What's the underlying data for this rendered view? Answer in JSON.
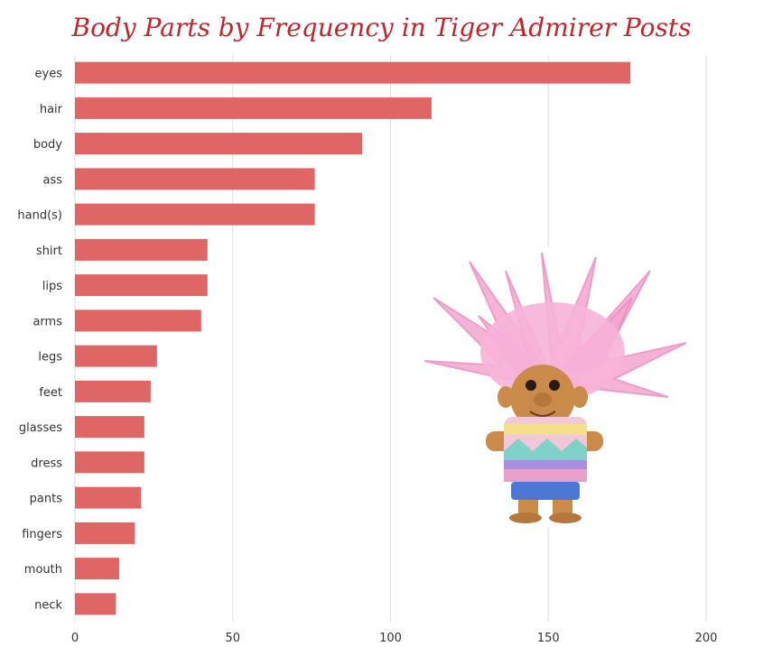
{
  "chart_data": {
    "type": "bar",
    "orientation": "horizontal",
    "title": "Body Parts by Frequency in Tiger Admirer Posts",
    "categories": [
      "eyes",
      "hair",
      "body",
      "ass",
      "hand(s)",
      "shirt",
      "lips",
      "arms",
      "legs",
      "feet",
      "glasses",
      "dress",
      "pants",
      "fingers",
      "mouth",
      "neck"
    ],
    "values": [
      176,
      113,
      91,
      76,
      76,
      42,
      42,
      40,
      26,
      24,
      22,
      22,
      21,
      19,
      14,
      13
    ],
    "xlim": [
      0,
      200
    ],
    "xticks": [
      0,
      50,
      100,
      150,
      200
    ],
    "grid": true,
    "bar_color": "#e06666",
    "grid_color": "#dddddd"
  },
  "image": {
    "subject": "troll-doll"
  }
}
